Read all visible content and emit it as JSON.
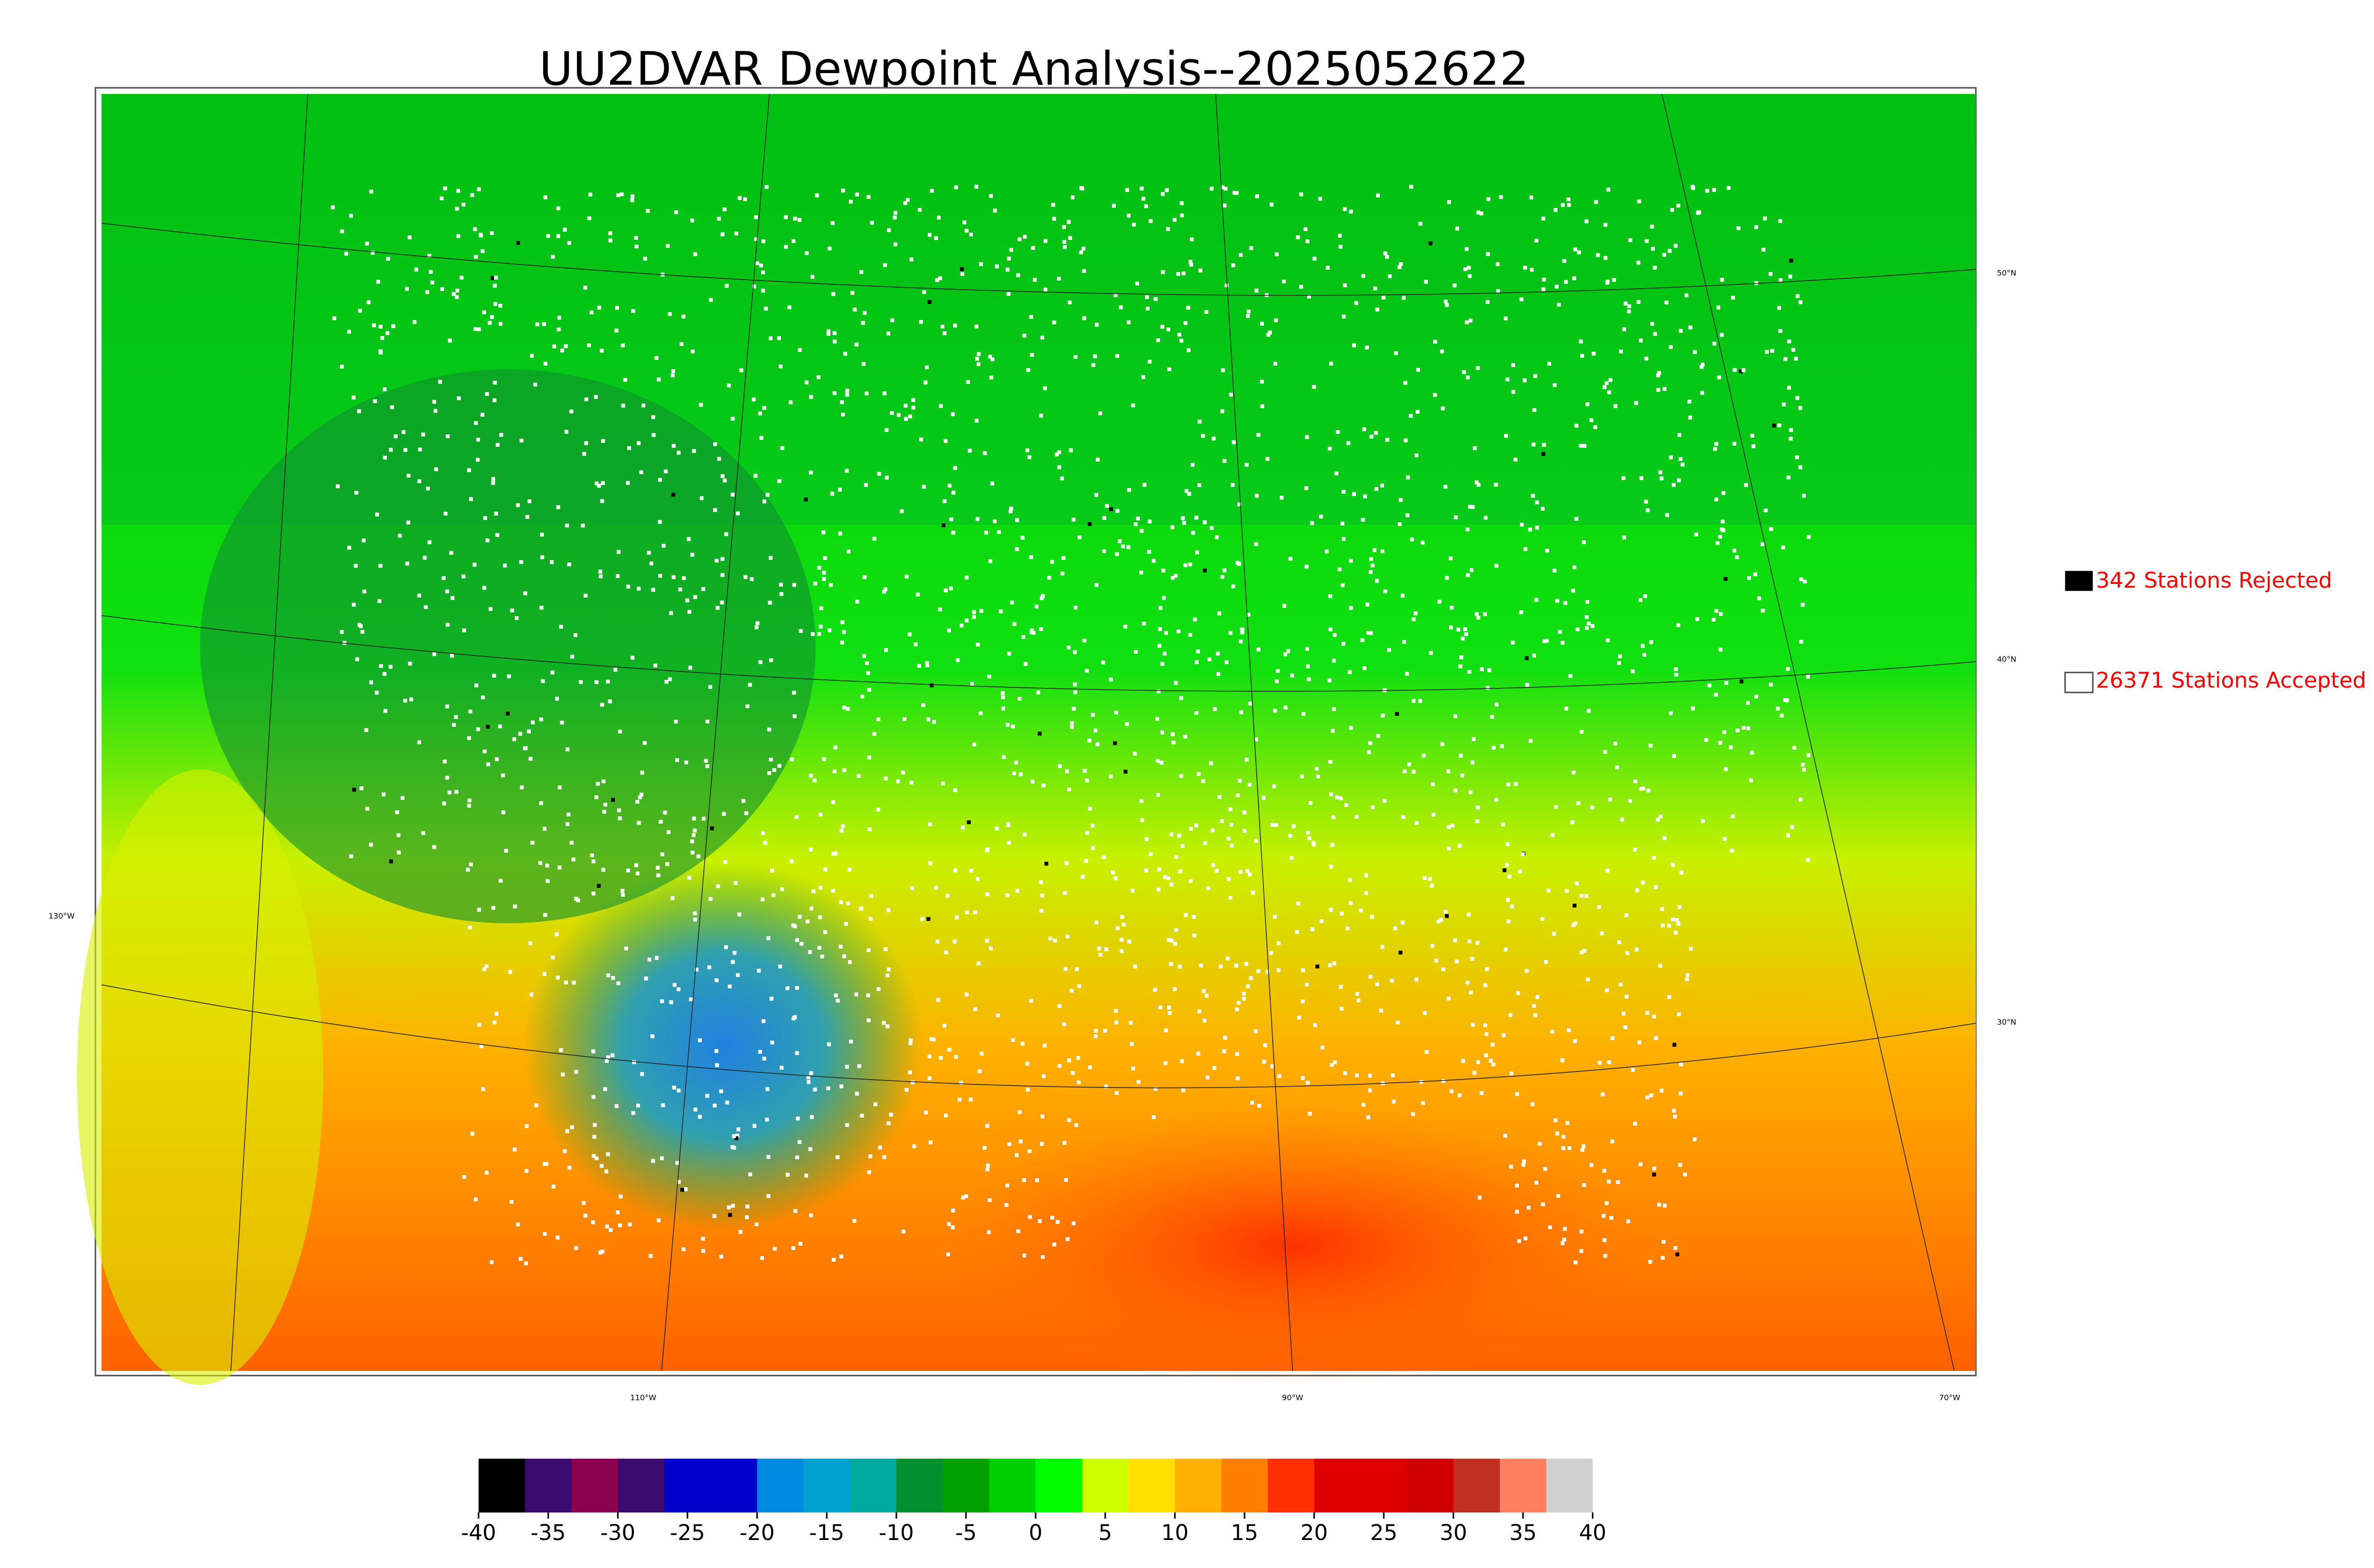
{
  "header": {
    "title": "UU2DVAR Dewpoint Analysis--2025052622"
  },
  "legend": [
    {
      "label": "342 Stations Rejected",
      "color": "#000000"
    },
    {
      "label": "26371 Stations Accepted",
      "color": "#ffffff"
    }
  ],
  "graticule": {
    "lon_labels": [
      "130°W",
      "110°W",
      "90°W",
      "70°W"
    ],
    "lat_labels": [
      "50°N",
      "40°N",
      "30°N"
    ]
  },
  "colorbar": {
    "range": [
      -40,
      40
    ],
    "ticks": [
      -40,
      -35,
      -30,
      -25,
      -20,
      -15,
      -10,
      -5,
      0,
      5,
      10,
      15,
      20,
      25,
      30,
      35,
      40
    ],
    "colors": [
      "#000000",
      "#3a0a6e",
      "#8c0050",
      "#3a0a6e",
      "#0000cc",
      "#0000cc",
      "#008ae0",
      "#00a0d0",
      "#00a8a0",
      "#009030",
      "#00a000",
      "#00d000",
      "#00ff00",
      "#d0ff00",
      "#ffe000",
      "#ffb000",
      "#ff8000",
      "#ff3000",
      "#e00000",
      "#e00000",
      "#d00000",
      "#c03020",
      "#ff8060",
      "#d0d0d0"
    ]
  }
}
